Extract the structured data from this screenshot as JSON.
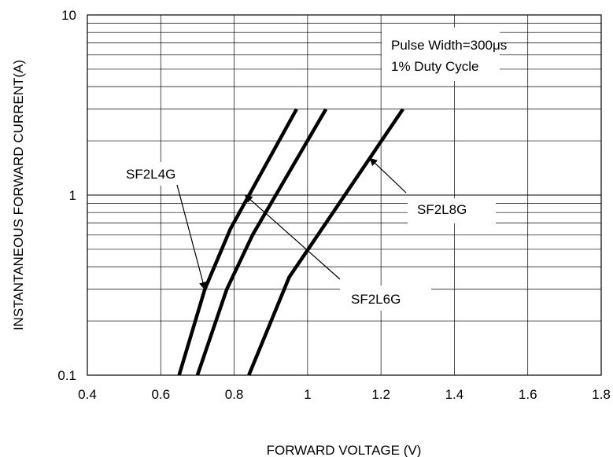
{
  "chart_data": {
    "type": "line",
    "x_scale": "linear",
    "y_scale": "log",
    "xlim": [
      0.4,
      1.8
    ],
    "ylim": [
      0.1,
      10
    ],
    "grid": true,
    "x_ticks": [
      0.4,
      0.6,
      0.8,
      1.0,
      1.2,
      1.4,
      1.6,
      1.8
    ],
    "x_tick_labels": [
      "0.4",
      "0.6",
      "0.8",
      "1",
      "1.2",
      "1.4",
      "1.6",
      "1.8"
    ],
    "y_ticks": [
      0.1,
      1,
      10
    ],
    "y_tick_labels": [
      "0.1",
      "1",
      "10"
    ],
    "xlabel": "FORWARD VOLTAGE (V)",
    "ylabel": "INSTANTANEOUS FORWARD CURRENT(A)",
    "notes": [
      "Pulse Width=300μs",
      "1% Duty Cycle"
    ],
    "series": [
      {
        "name": "SF2L4G",
        "points": [
          [
            0.65,
            0.1
          ],
          [
            0.72,
            0.3
          ],
          [
            0.79,
            0.65
          ],
          [
            0.97,
            3.0
          ]
        ]
      },
      {
        "name": "SF2L6G",
        "points": [
          [
            0.7,
            0.1
          ],
          [
            0.78,
            0.3
          ],
          [
            0.85,
            0.6
          ],
          [
            1.05,
            3.0
          ]
        ]
      },
      {
        "name": "SF2L8G",
        "points": [
          [
            0.84,
            0.1
          ],
          [
            0.95,
            0.35
          ],
          [
            1.05,
            0.7
          ],
          [
            1.26,
            3.0
          ]
        ]
      }
    ],
    "annotations": [
      {
        "label": "SF2L4G",
        "series": "SF2L4G",
        "arrow_to": [
          0.72,
          0.3
        ]
      },
      {
        "label": "SF2L6G",
        "series": "SF2L6G",
        "arrow_to": [
          0.83,
          1.0
        ]
      },
      {
        "label": "SF2L8G",
        "series": "SF2L8G",
        "arrow_to": [
          1.17,
          1.6
        ]
      }
    ]
  }
}
